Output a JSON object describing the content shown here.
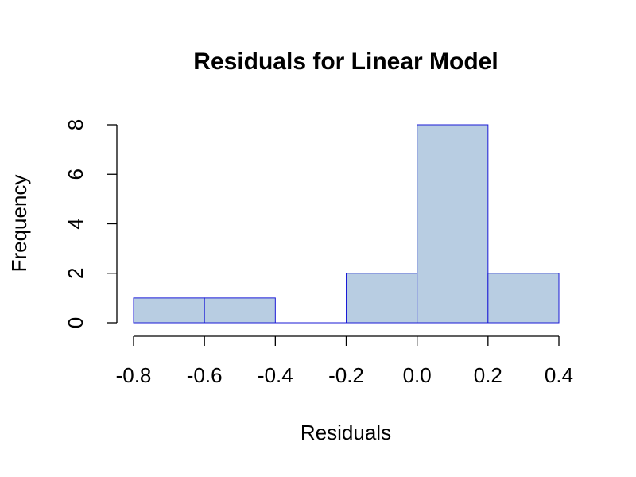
{
  "chart_data": {
    "type": "bar",
    "title": "Residuals for Linear Model",
    "xlabel": "Residuals",
    "ylabel": "Frequency",
    "bins": [
      {
        "from": -0.8,
        "to": -0.6,
        "value": 1
      },
      {
        "from": -0.6,
        "to": -0.4,
        "value": 1
      },
      {
        "from": -0.4,
        "to": -0.2,
        "value": 0
      },
      {
        "from": -0.2,
        "to": 0.0,
        "value": 2
      },
      {
        "from": 0.0,
        "to": 0.2,
        "value": 8
      },
      {
        "from": 0.2,
        "to": 0.4,
        "value": 2
      }
    ],
    "xlim": [
      -0.8,
      0.4
    ],
    "ylim": [
      0,
      8
    ],
    "x_ticks": [
      -0.8,
      -0.6,
      -0.4,
      -0.2,
      0.0,
      0.2,
      0.4
    ],
    "x_tick_labels": [
      "-0.8",
      "-0.6",
      "-0.4",
      "-0.2",
      "0.0",
      "0.2",
      "0.4"
    ],
    "y_ticks": [
      0,
      2,
      4,
      6,
      8
    ],
    "y_tick_labels": [
      "0",
      "2",
      "4",
      "6",
      "8"
    ],
    "grid": false,
    "bar_fill": "#b8cde2",
    "bar_border": "#1a1ad6"
  }
}
